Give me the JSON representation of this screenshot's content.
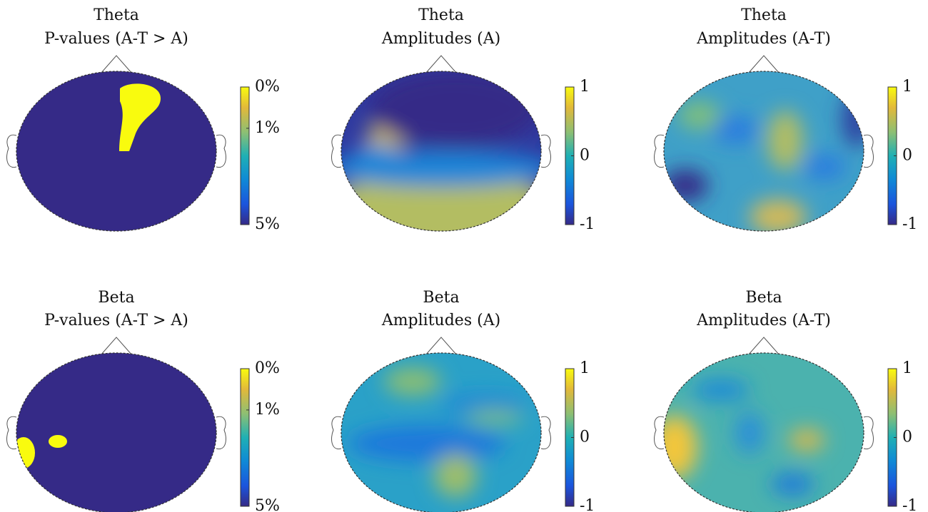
{
  "panels": [
    {
      "title_lines": [
        "Theta",
        "P-values (A-T > A)"
      ],
      "colorbar_ticks": [
        "0%",
        "1%",
        "5%"
      ]
    },
    {
      "title_lines": [
        "Theta",
        "Amplitudes (A)"
      ],
      "colorbar_ticks": [
        "1",
        "0",
        "-1"
      ]
    },
    {
      "title_lines": [
        "Theta",
        "Amplitudes (A-T)"
      ],
      "colorbar_ticks": [
        "1",
        "0",
        "-1"
      ]
    },
    {
      "title_lines": [
        "Beta",
        "P-values (A-T > A)"
      ],
      "colorbar_ticks": [
        "0%",
        "1%",
        "5%"
      ]
    },
    {
      "title_lines": [
        "Beta",
        "Amplitudes (A)"
      ],
      "colorbar_ticks": [
        "1",
        "0",
        "-1"
      ]
    },
    {
      "title_lines": [
        "Beta",
        "Amplitudes (A-T)"
      ],
      "colorbar_ticks": [
        "1",
        "0",
        "-1"
      ]
    }
  ]
}
